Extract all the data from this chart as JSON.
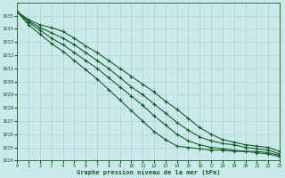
{
  "background_color": "#c8eaea",
  "plot_bg_color": "#c8eaea",
  "grid_color": "#aacfcf",
  "line_color": "#1a5c2a",
  "marker_color": "#1a5c2a",
  "xlabel": "Graphe pression niveau de la mer (hPa)",
  "xlim": [
    0,
    23
  ],
  "ylim": [
    1024,
    1036
  ],
  "yticks": [
    1024,
    1025,
    1026,
    1027,
    1028,
    1029,
    1030,
    1031,
    1032,
    1033,
    1034,
    1035
  ],
  "xticks": [
    0,
    1,
    2,
    3,
    4,
    5,
    6,
    7,
    8,
    9,
    10,
    11,
    12,
    13,
    14,
    15,
    16,
    17,
    18,
    19,
    20,
    21,
    22,
    23
  ],
  "series": [
    [
      1035.3,
      1034.7,
      1034.3,
      1034.1,
      1033.8,
      1033.3,
      1032.7,
      1032.2,
      1031.6,
      1031.0,
      1030.4,
      1029.8,
      1029.2,
      1028.5,
      1027.9,
      1027.2,
      1026.5,
      1026.0,
      1025.6,
      1025.4,
      1025.2,
      1025.1,
      1025.0,
      1024.7
    ],
    [
      1035.3,
      1034.6,
      1034.1,
      1033.7,
      1033.3,
      1032.8,
      1032.2,
      1031.6,
      1031.0,
      1030.3,
      1029.6,
      1029.0,
      1028.3,
      1027.6,
      1026.9,
      1026.3,
      1025.8,
      1025.5,
      1025.3,
      1025.2,
      1025.0,
      1024.9,
      1024.8,
      1024.5
    ],
    [
      1035.3,
      1034.5,
      1033.9,
      1033.3,
      1032.8,
      1032.2,
      1031.6,
      1031.0,
      1030.3,
      1029.6,
      1028.9,
      1028.2,
      1027.4,
      1026.7,
      1026.0,
      1025.5,
      1025.2,
      1025.0,
      1024.9,
      1024.8,
      1024.7,
      1024.7,
      1024.6,
      1024.4
    ],
    [
      1035.3,
      1034.3,
      1033.6,
      1032.9,
      1032.3,
      1031.6,
      1030.9,
      1030.2,
      1029.4,
      1028.6,
      1027.8,
      1027.0,
      1026.2,
      1025.6,
      1025.1,
      1025.0,
      1024.9,
      1024.8,
      1024.8,
      1024.7,
      1024.7,
      1024.6,
      1024.5,
      1024.3
    ]
  ]
}
